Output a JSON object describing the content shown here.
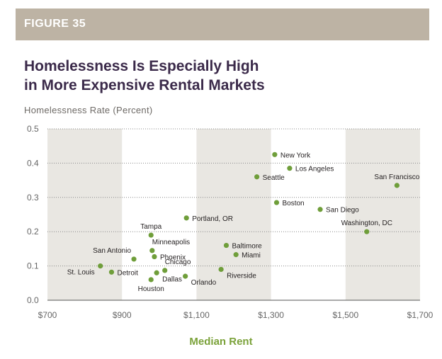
{
  "figure_label": "FIGURE 35",
  "chart_data": {
    "type": "scatter",
    "title_lines": [
      "Homelessness Is Especially High",
      "in More Expensive Rental Markets"
    ],
    "xlabel": "Median Rent",
    "ylabel": "Homelessness Rate (Percent)",
    "xlim": [
      700,
      1700
    ],
    "ylim": [
      0,
      0.5
    ],
    "x_ticks": [
      700,
      900,
      1100,
      1300,
      1500,
      1700
    ],
    "x_tick_labels": [
      "$700",
      "$900",
      "$1,100",
      "$1,300",
      "$1,500",
      "$1,700"
    ],
    "y_ticks": [
      0,
      0.1,
      0.2,
      0.3,
      0.4,
      0.5
    ],
    "y_tick_labels": [
      "0.0",
      "0.1",
      "0.2",
      "0.3",
      "0.4",
      "0.5"
    ],
    "grid": "horizontal dotted",
    "shaded_bands": [
      [
        700,
        900
      ],
      [
        1100,
        1300
      ],
      [
        1500,
        1700
      ]
    ],
    "point_color": "#6f9e3a",
    "band_color": "#e9e7e2",
    "points": [
      {
        "label": "New York",
        "x": 1310,
        "y": 0.425,
        "anchor": "right"
      },
      {
        "label": "Los Angeles",
        "x": 1350,
        "y": 0.385,
        "anchor": "right"
      },
      {
        "label": "Seattle",
        "x": 1262,
        "y": 0.36,
        "anchor": "right"
      },
      {
        "label": "San Francisco",
        "x": 1638,
        "y": 0.335,
        "anchor": "above"
      },
      {
        "label": "Boston",
        "x": 1315,
        "y": 0.285,
        "anchor": "right"
      },
      {
        "label": "San Diego",
        "x": 1432,
        "y": 0.265,
        "anchor": "right"
      },
      {
        "label": "Portland, OR",
        "x": 1073,
        "y": 0.24,
        "anchor": "right"
      },
      {
        "label": "Washington, DC",
        "x": 1557,
        "y": 0.2,
        "anchor": "above"
      },
      {
        "label": "Tampa",
        "x": 978,
        "y": 0.19,
        "anchor": "above"
      },
      {
        "label": "Baltimore",
        "x": 1180,
        "y": 0.16,
        "anchor": "right"
      },
      {
        "label": "Minneapolis",
        "x": 981,
        "y": 0.145,
        "anchor": "above-right"
      },
      {
        "label": "Miami",
        "x": 1206,
        "y": 0.133,
        "anchor": "right"
      },
      {
        "label": "Phoenix",
        "x": 987,
        "y": 0.127,
        "anchor": "right"
      },
      {
        "label": "San Antonio",
        "x": 932,
        "y": 0.12,
        "anchor": "above-left"
      },
      {
        "label": "Chicago",
        "x": 1015,
        "y": 0.087,
        "anchor": "above-right"
      },
      {
        "label": "St. Louis",
        "x": 842,
        "y": 0.1,
        "anchor": "below-left"
      },
      {
        "label": "Detroit",
        "x": 872,
        "y": 0.082,
        "anchor": "right"
      },
      {
        "label": "Dallas",
        "x": 993,
        "y": 0.08,
        "anchor": "below-right"
      },
      {
        "label": "Riverside",
        "x": 1166,
        "y": 0.09,
        "anchor": "below-right"
      },
      {
        "label": "Houston",
        "x": 978,
        "y": 0.06,
        "anchor": "below"
      },
      {
        "label": "Orlando",
        "x": 1070,
        "y": 0.07,
        "anchor": "below-right"
      }
    ]
  }
}
